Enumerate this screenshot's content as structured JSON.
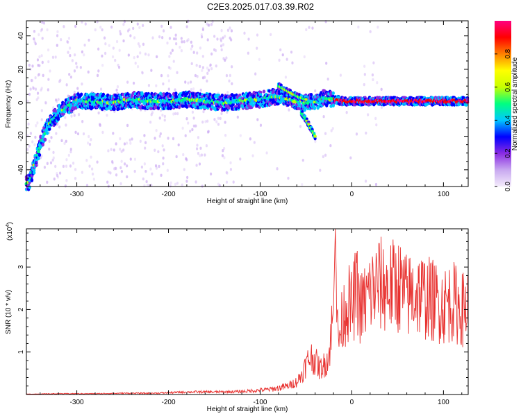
{
  "title": "C2E3.2025.017.03.39.R02",
  "chart_data": [
    {
      "type": "heatmap",
      "xlabel": "Height of straight line (km)",
      "ylabel": "Frequency (Hz)",
      "xlim": [
        -355,
        127
      ],
      "ylim": [
        -50,
        49
      ],
      "x_ticks": [
        -300,
        -200,
        -100,
        0,
        100
      ],
      "y_ticks": [
        -40,
        -20,
        0,
        20,
        40
      ],
      "colorbar": {
        "label": "Normalized spectral amplitude",
        "range": [
          0.0,
          1.0
        ],
        "ticks": [
          0.0,
          0.2,
          0.4,
          0.6,
          0.8
        ],
        "colors": [
          "#f4ecfb",
          "#c8a8f0",
          "#8a2be2",
          "#0000ff",
          "#00c8ff",
          "#00ff80",
          "#c8ff00",
          "#ffff00",
          "#ff8000",
          "#ff0000",
          "#ff0080"
        ]
      },
      "ridge": {
        "x": [
          -352,
          -345,
          -338,
          -330,
          -320,
          -310,
          -300,
          -280,
          -260,
          -240,
          -220,
          -200,
          -180,
          -160,
          -140,
          -120,
          -100,
          -90,
          -80,
          -70,
          -60,
          -50,
          -45,
          -40,
          -35,
          -30,
          -20,
          -10,
          0,
          20,
          40,
          60,
          80,
          100,
          120,
          127
        ],
        "y": [
          -48,
          -35,
          -22,
          -12,
          -6,
          -2,
          1,
          1,
          0,
          2,
          1,
          1,
          2,
          1,
          0,
          1,
          2,
          3,
          4,
          2,
          1,
          0,
          1,
          0,
          2,
          3,
          2,
          1,
          1,
          1,
          1,
          1,
          1,
          1,
          1,
          1
        ]
      },
      "branches": [
        {
          "x": [
            -80,
            -70,
            -60,
            -50
          ],
          "y": [
            10,
            7,
            4,
            2
          ]
        },
        {
          "x": [
            -55,
            -50,
            -45,
            -40
          ],
          "y": [
            -6,
            -10,
            -15,
            -20
          ]
        }
      ]
    },
    {
      "type": "line",
      "xlabel": "Height of straight line (km)",
      "ylabel": "SNR (10 * v/v)",
      "y_exponent": "(x10",
      "y_exponent_power": "4",
      "xlim": [
        -355,
        127
      ],
      "ylim": [
        0,
        3.9
      ],
      "x_ticks": [
        -300,
        -200,
        -100,
        0,
        100
      ],
      "y_ticks": [
        1,
        2,
        3
      ],
      "line_color": "#e8312f",
      "series": [
        {
          "x": [
            -355,
            -320,
            -280,
            -250,
            -220,
            -200,
            -180,
            -150,
            -120,
            -100,
            -90,
            -80,
            -70,
            -60,
            -55,
            -50,
            -45,
            -40,
            -35,
            -30,
            -25,
            -20,
            -18,
            -15,
            -10,
            -5,
            0,
            5,
            10,
            20,
            30,
            40,
            50,
            60,
            70,
            80,
            90,
            100,
            110,
            120,
            127
          ],
          "values": [
            0.01,
            0.02,
            0.02,
            0.03,
            0.03,
            0.04,
            0.06,
            0.06,
            0.07,
            0.1,
            0.12,
            0.15,
            0.2,
            0.3,
            0.45,
            0.7,
            0.9,
            0.8,
            0.6,
            0.7,
            0.9,
            2.0,
            3.9,
            1.2,
            1.8,
            2.2,
            2.0,
            2.5,
            2.0,
            2.4,
            2.6,
            2.5,
            2.6,
            2.3,
            2.4,
            2.3,
            2.2,
            2.1,
            2.2,
            2.0,
            2.1
          ]
        }
      ]
    }
  ]
}
